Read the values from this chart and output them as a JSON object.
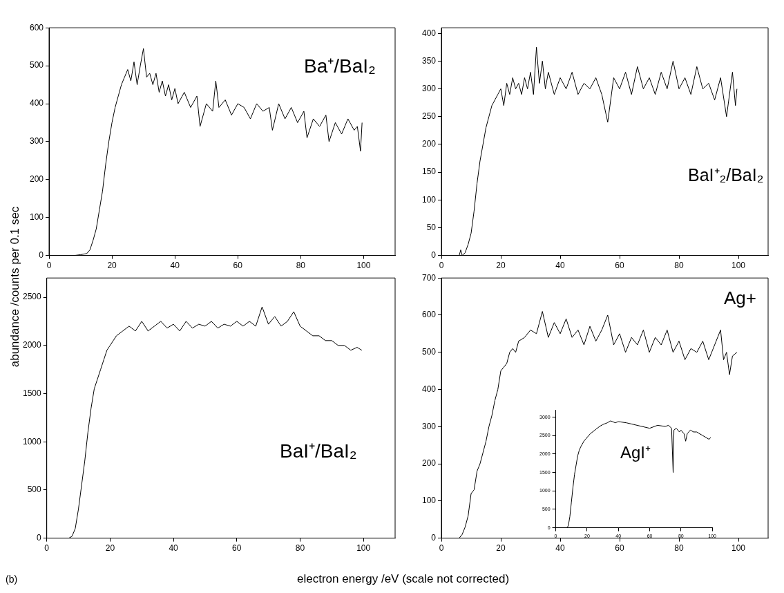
{
  "chart_data": [
    {
      "type": "line",
      "ylabel": "abundance /counts per 0.1 sec",
      "annotations": [
        "Ba⁺/BaI₂"
      ],
      "xlim": [
        0,
        110
      ],
      "xticks": [
        0,
        20,
        40,
        60,
        80,
        100
      ],
      "ylim": [
        0,
        600
      ],
      "yticks": [
        0,
        100,
        200,
        300,
        400,
        500,
        600
      ],
      "grid": false,
      "marker": "none",
      "series": [
        {
          "color": "#000000",
          "x": [
            8,
            10,
            12,
            13,
            14,
            15,
            16,
            17,
            18,
            19,
            20,
            21,
            22,
            23,
            24,
            25,
            26,
            27,
            28,
            29,
            30,
            31,
            32,
            33,
            34,
            35,
            36,
            37,
            38,
            39,
            40,
            41,
            43,
            45,
            47,
            48,
            50,
            52,
            53,
            54,
            56,
            58,
            60,
            62,
            64,
            66,
            68,
            70,
            71,
            73,
            75,
            77,
            79,
            81,
            82,
            84,
            86,
            88,
            89,
            91,
            93,
            95,
            97,
            98,
            99,
            99.5
          ],
          "values": [
            0,
            2,
            5,
            15,
            40,
            70,
            120,
            170,
            240,
            300,
            350,
            390,
            420,
            450,
            470,
            490,
            460,
            510,
            450,
            500,
            545,
            470,
            480,
            450,
            480,
            430,
            460,
            420,
            450,
            410,
            440,
            400,
            430,
            390,
            420,
            340,
            400,
            380,
            460,
            390,
            410,
            370,
            400,
            390,
            360,
            400,
            380,
            390,
            330,
            400,
            360,
            390,
            350,
            380,
            310,
            360,
            340,
            370,
            300,
            350,
            320,
            360,
            330,
            340,
            275,
            350
          ]
        }
      ]
    },
    {
      "type": "line",
      "annotations": [
        "BaI⁺₂/BaI₂"
      ],
      "xlim": [
        0,
        110
      ],
      "xticks": [
        0,
        20,
        40,
        60,
        80,
        100
      ],
      "ylim": [
        0,
        410
      ],
      "yticks": [
        0,
        50,
        100,
        150,
        200,
        250,
        300,
        350,
        400
      ],
      "grid": false,
      "marker": "none",
      "series": [
        {
          "color": "#000000",
          "x": [
            6,
            6.5,
            7,
            8,
            9,
            10,
            11,
            12,
            13,
            14,
            15,
            16,
            17,
            18,
            19,
            20,
            21,
            22,
            23,
            24,
            25,
            26,
            27,
            28,
            29,
            30,
            31,
            32,
            33,
            34,
            35,
            36,
            38,
            40,
            42,
            44,
            46,
            48,
            50,
            52,
            54,
            56,
            58,
            60,
            62,
            64,
            66,
            68,
            70,
            72,
            74,
            76,
            78,
            80,
            82,
            84,
            86,
            88,
            90,
            92,
            94,
            96,
            98,
            99,
            99.5
          ],
          "values": [
            0,
            10,
            0,
            5,
            20,
            40,
            80,
            130,
            170,
            200,
            230,
            250,
            270,
            280,
            290,
            300,
            270,
            310,
            290,
            320,
            300,
            310,
            290,
            320,
            300,
            330,
            290,
            375,
            310,
            350,
            300,
            330,
            290,
            320,
            300,
            330,
            290,
            310,
            300,
            320,
            290,
            240,
            320,
            300,
            330,
            290,
            340,
            300,
            320,
            290,
            330,
            300,
            350,
            300,
            320,
            290,
            340,
            300,
            310,
            280,
            320,
            250,
            330,
            270,
            300
          ]
        }
      ]
    },
    {
      "type": "line",
      "xlabel": "electron energy /eV (scale not corrected)",
      "annotations": [
        "BaI⁺/BaI₂",
        "(b)"
      ],
      "xlim": [
        0,
        110
      ],
      "xticks": [
        0,
        20,
        40,
        60,
        80,
        100
      ],
      "ylim": [
        0,
        2700
      ],
      "yticks": [
        0,
        500,
        1000,
        1500,
        2000,
        2500
      ],
      "grid": false,
      "marker": "none",
      "series": [
        {
          "color": "#000000",
          "x": [
            7,
            8,
            9,
            10,
            11,
            12,
            13,
            14,
            15,
            16,
            17,
            18,
            19,
            20,
            21,
            22,
            24,
            26,
            28,
            30,
            32,
            34,
            36,
            38,
            40,
            42,
            44,
            46,
            48,
            50,
            52,
            54,
            56,
            58,
            60,
            62,
            64,
            66,
            68,
            70,
            72,
            74,
            76,
            78,
            80,
            82,
            84,
            86,
            88,
            90,
            92,
            94,
            96,
            98,
            99.5
          ],
          "values": [
            0,
            20,
            100,
            300,
            550,
            800,
            1100,
            1350,
            1550,
            1650,
            1750,
            1850,
            1950,
            2000,
            2050,
            2100,
            2150,
            2200,
            2150,
            2250,
            2150,
            2200,
            2250,
            2180,
            2220,
            2150,
            2250,
            2180,
            2220,
            2200,
            2250,
            2180,
            2220,
            2200,
            2250,
            2200,
            2250,
            2200,
            2400,
            2220,
            2300,
            2200,
            2250,
            2350,
            2200,
            2150,
            2100,
            2100,
            2050,
            2050,
            2000,
            2000,
            1950,
            1980,
            1950
          ]
        }
      ]
    },
    {
      "type": "line",
      "annotations": [
        "Ag+"
      ],
      "xlim": [
        0,
        110
      ],
      "xticks": [
        0,
        20,
        40,
        60,
        80,
        100
      ],
      "ylim": [
        0,
        700
      ],
      "yticks": [
        0,
        100,
        200,
        300,
        400,
        500,
        600,
        700
      ],
      "grid": false,
      "marker": "none",
      "series": [
        {
          "color": "#000000",
          "x": [
            6,
            7,
            8,
            9,
            10,
            11,
            12,
            13,
            14,
            15,
            16,
            17,
            18,
            19,
            20,
            21,
            22,
            23,
            24,
            25,
            26,
            28,
            30,
            32,
            34,
            36,
            38,
            40,
            42,
            44,
            46,
            48,
            50,
            52,
            54,
            56,
            58,
            60,
            62,
            64,
            66,
            68,
            70,
            72,
            74,
            76,
            78,
            80,
            82,
            84,
            86,
            88,
            90,
            92,
            94,
            95,
            96,
            97,
            98,
            99.5
          ],
          "values": [
            0,
            10,
            30,
            60,
            120,
            130,
            180,
            200,
            230,
            260,
            300,
            330,
            370,
            400,
            450,
            460,
            470,
            500,
            510,
            500,
            530,
            540,
            560,
            550,
            610,
            540,
            580,
            550,
            590,
            540,
            560,
            520,
            570,
            530,
            560,
            600,
            520,
            550,
            500,
            540,
            520,
            560,
            500,
            540,
            520,
            560,
            500,
            530,
            480,
            510,
            500,
            530,
            480,
            520,
            560,
            480,
            500,
            440,
            490,
            500
          ]
        }
      ]
    },
    {
      "type": "line",
      "annotations": [
        "AgI⁺"
      ],
      "xlim": [
        0,
        100
      ],
      "xticks": [
        0,
        20,
        40,
        60,
        80,
        100
      ],
      "ylim": [
        0,
        3200
      ],
      "yticks": [
        0,
        500,
        1000,
        1500,
        2000,
        2500,
        3000
      ],
      "grid": false,
      "marker": "none",
      "series": [
        {
          "color": "#000000",
          "x": [
            6,
            7,
            8,
            9,
            10,
            11,
            12,
            13,
            14,
            15,
            16,
            18,
            20,
            22,
            25,
            28,
            30,
            33,
            35,
            38,
            40,
            45,
            50,
            55,
            60,
            65,
            70,
            72,
            74,
            75,
            75.5,
            77,
            79,
            80,
            82,
            83,
            84,
            86,
            88,
            90,
            92,
            94,
            96,
            98,
            99
          ],
          "values": [
            0,
            0,
            50,
            300,
            700,
            1100,
            1450,
            1700,
            1950,
            2100,
            2200,
            2350,
            2450,
            2550,
            2650,
            2750,
            2800,
            2850,
            2900,
            2850,
            2880,
            2850,
            2800,
            2750,
            2700,
            2780,
            2750,
            2780,
            2700,
            1500,
            2650,
            2700,
            2600,
            2650,
            2550,
            2350,
            2550,
            2650,
            2600,
            2600,
            2550,
            2500,
            2450,
            2400,
            2450
          ]
        }
      ]
    }
  ]
}
